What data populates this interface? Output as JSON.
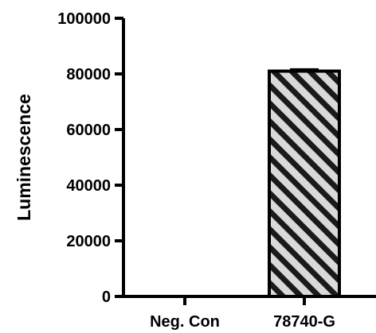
{
  "chart_data": {
    "type": "bar",
    "title": "",
    "xlabel": "",
    "ylabel": "Luminescence",
    "categories": [
      "Neg. Con",
      "78740-G"
    ],
    "series": [
      {
        "values": [
          300,
          81000
        ],
        "errors": [
          0,
          600
        ],
        "colors": [
          "#000000",
          "#d9d9d9"
        ],
        "patterns": [
          "none",
          "diagonal-stripes"
        ]
      }
    ],
    "ylim": [
      0,
      100000
    ],
    "yticks": [
      0,
      20000,
      40000,
      60000,
      80000,
      100000
    ],
    "ytick_labels": [
      "0",
      "20000",
      "40000",
      "60000",
      "80000",
      "100000"
    ],
    "grid": false,
    "legend": "none"
  }
}
